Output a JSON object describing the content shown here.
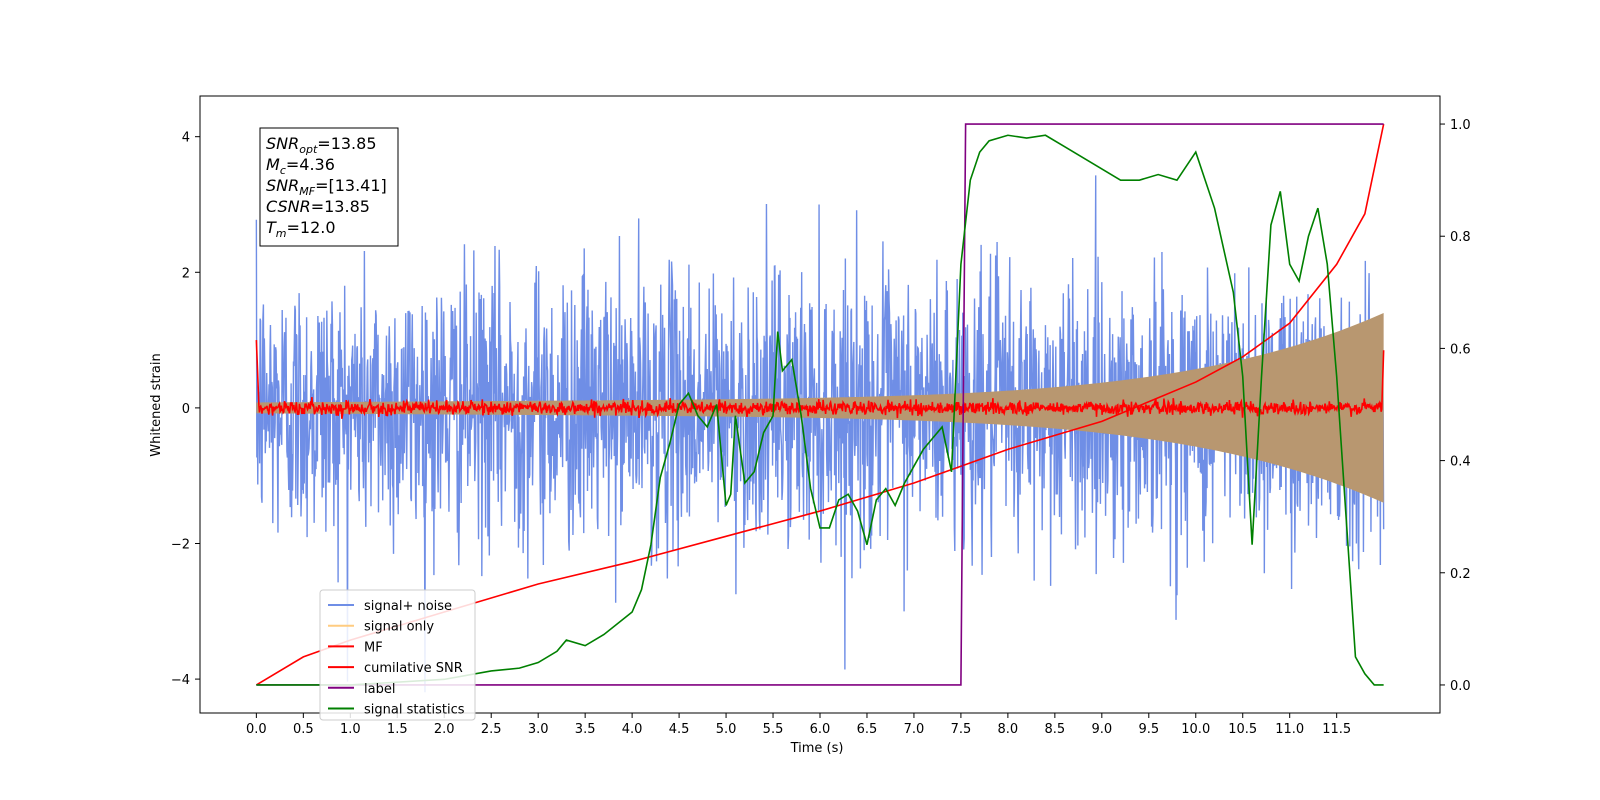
{
  "chart_data": {
    "type": "line",
    "title": "",
    "xlabel": "Time (s)",
    "ylabel": "Whitened strain",
    "y2label": "",
    "xlim": [
      -0.6,
      12.6
    ],
    "ylim": [
      -4.5,
      4.6
    ],
    "y2lim": [
      -0.05,
      1.05
    ],
    "xticks": [
      "0.0",
      "0.5",
      "1.0",
      "1.5",
      "2.0",
      "2.5",
      "3.0",
      "3.5",
      "4.0",
      "4.5",
      "5.0",
      "5.5",
      "6.0",
      "6.5",
      "7.0",
      "7.5",
      "8.0",
      "8.5",
      "9.0",
      "9.5",
      "10.0",
      "10.5",
      "11.0",
      "11.5"
    ],
    "yticks": [
      "4",
      "2",
      "0",
      "−2",
      "−4"
    ],
    "y2ticks": [
      "1.0",
      "0.8",
      "0.6",
      "0.4",
      "0.2",
      "0.0"
    ],
    "legend_location": "lower-left",
    "grid": false,
    "annotation": {
      "lines": [
        {
          "var": "SNR",
          "sub": "opt",
          "value": "=13.85"
        },
        {
          "var": "M",
          "sub": "c",
          "value": "=4.36"
        },
        {
          "var": "SNR",
          "sub": "MF",
          "value": "=[13.41]"
        },
        {
          "var": "CSNR",
          "sub": "",
          "value": "=13.85"
        },
        {
          "var": "T",
          "sub": "m",
          "value": "=12.0"
        }
      ]
    },
    "series": [
      {
        "name": "signal+ noise",
        "color": "#6f8ee6",
        "axis": "left",
        "kind": "noise",
        "sigma": 1.0,
        "x_range": [
          0,
          12
        ]
      },
      {
        "name": "signal only",
        "color": "#ffcc80",
        "axis": "left",
        "kind": "chirp_envelope",
        "amplitude_at_start": 0.08,
        "amplitude_at_end": 1.3
      },
      {
        "name": "MF",
        "color": "#ff0000",
        "axis": "left",
        "kind": "noise",
        "sigma": 0.05
      },
      {
        "name": "cumilative SNR",
        "color": "#ff0000",
        "axis": "right",
        "x": [
          0,
          0.5,
          1,
          2,
          3,
          4,
          5,
          6,
          7,
          7.5,
          8,
          9,
          10,
          10.5,
          11,
          11.5,
          11.8,
          12
        ],
        "y": [
          0.0,
          0.05,
          0.08,
          0.13,
          0.18,
          0.22,
          0.265,
          0.31,
          0.36,
          0.39,
          0.42,
          0.47,
          0.54,
          0.585,
          0.645,
          0.75,
          0.84,
          1.0
        ]
      },
      {
        "name": "label",
        "color": "#800080",
        "axis": "right",
        "x": [
          0,
          7.5,
          7.55,
          12
        ],
        "y": [
          0,
          0,
          1,
          1
        ]
      },
      {
        "name": "signal statistics",
        "color": "#008000",
        "axis": "right",
        "x": [
          0,
          1,
          2,
          2.5,
          2.8,
          3,
          3.2,
          3.3,
          3.5,
          3.7,
          4.0,
          4.1,
          4.2,
          4.3,
          4.4,
          4.5,
          4.6,
          4.7,
          4.8,
          4.9,
          5.0,
          5.05,
          5.1,
          5.2,
          5.3,
          5.4,
          5.5,
          5.55,
          5.6,
          5.7,
          5.8,
          5.9,
          6.0,
          6.1,
          6.2,
          6.3,
          6.4,
          6.5,
          6.6,
          6.7,
          6.8,
          6.9,
          7.0,
          7.1,
          7.2,
          7.3,
          7.4,
          7.5,
          7.6,
          7.7,
          7.8,
          8.0,
          8.2,
          8.4,
          8.6,
          8.8,
          9.0,
          9.2,
          9.4,
          9.6,
          9.8,
          10.0,
          10.2,
          10.4,
          10.5,
          10.6,
          10.7,
          10.8,
          10.9,
          11.0,
          11.1,
          11.2,
          11.3,
          11.4,
          11.5,
          11.6,
          11.7,
          11.8,
          11.9,
          12.0
        ],
        "y": [
          0.0,
          0.0,
          0.01,
          0.025,
          0.03,
          0.04,
          0.06,
          0.08,
          0.07,
          0.09,
          0.13,
          0.17,
          0.25,
          0.37,
          0.43,
          0.5,
          0.52,
          0.48,
          0.46,
          0.5,
          0.32,
          0.34,
          0.48,
          0.36,
          0.38,
          0.45,
          0.48,
          0.63,
          0.56,
          0.58,
          0.48,
          0.35,
          0.28,
          0.28,
          0.33,
          0.34,
          0.31,
          0.25,
          0.33,
          0.35,
          0.32,
          0.36,
          0.39,
          0.42,
          0.44,
          0.46,
          0.38,
          0.75,
          0.9,
          0.95,
          0.97,
          0.98,
          0.975,
          0.98,
          0.96,
          0.94,
          0.92,
          0.9,
          0.9,
          0.91,
          0.9,
          0.95,
          0.85,
          0.7,
          0.55,
          0.25,
          0.55,
          0.82,
          0.88,
          0.75,
          0.72,
          0.8,
          0.85,
          0.75,
          0.55,
          0.3,
          0.05,
          0.02,
          0.0,
          0.0
        ]
      }
    ]
  }
}
